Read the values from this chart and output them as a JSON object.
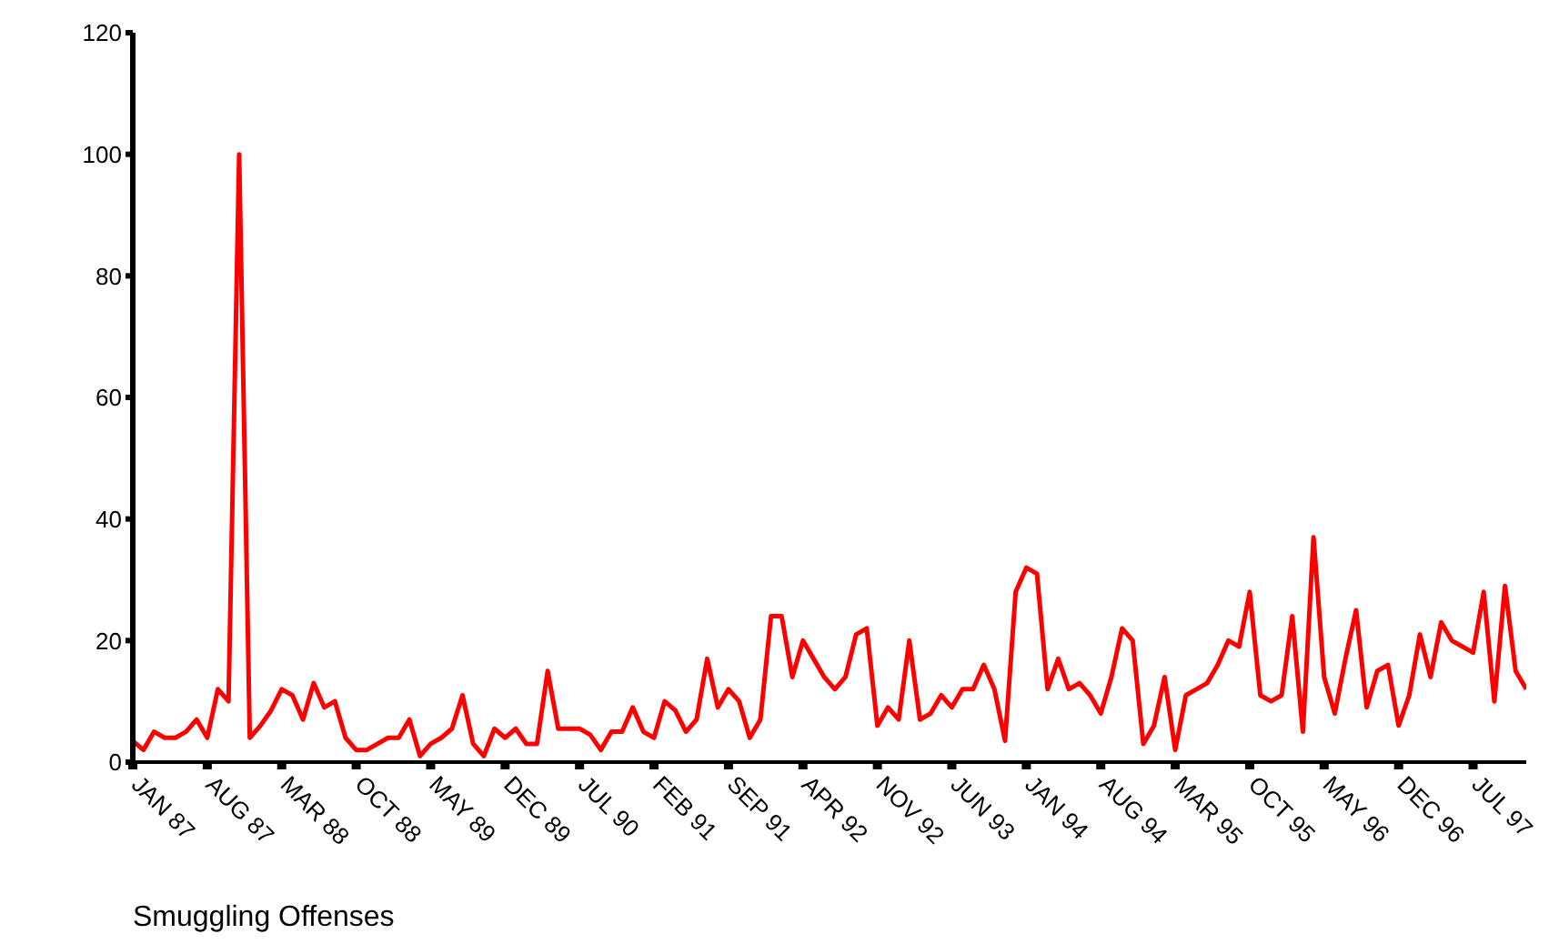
{
  "chart_data": {
    "type": "line",
    "title": "Smuggling Offenses",
    "categories": [
      "JAN 87",
      null,
      null,
      null,
      null,
      null,
      null,
      "AUG 87",
      null,
      null,
      null,
      null,
      null,
      null,
      "MAR 88",
      null,
      null,
      null,
      null,
      null,
      null,
      "OCT 88",
      null,
      null,
      null,
      null,
      null,
      null,
      "MAY 89",
      null,
      null,
      null,
      null,
      null,
      null,
      "DEC 89",
      null,
      null,
      null,
      null,
      null,
      null,
      "JUL 90",
      null,
      null,
      null,
      null,
      null,
      null,
      "FEB 91",
      null,
      null,
      null,
      null,
      null,
      null,
      "SEP 91",
      null,
      null,
      null,
      null,
      null,
      null,
      "APR 92",
      null,
      null,
      null,
      null,
      null,
      null,
      "NOV 92",
      null,
      null,
      null,
      null,
      null,
      null,
      "JUN 93",
      null,
      null,
      null,
      null,
      null,
      null,
      "JAN 94",
      null,
      null,
      null,
      null,
      null,
      null,
      "AUG 94",
      null,
      null,
      null,
      null,
      null,
      null,
      "MAR 95",
      null,
      null,
      null,
      null,
      null,
      null,
      "OCT 95",
      null,
      null,
      null,
      null,
      null,
      null,
      "MAY 96",
      null,
      null,
      null,
      null,
      null,
      null,
      "DEC 96",
      null,
      null,
      null,
      null,
      null,
      null,
      "JUL 97",
      null,
      null,
      null,
      null,
      null
    ],
    "series": [
      {
        "color": "#ff0000",
        "values": [
          3.5,
          2,
          5,
          4,
          4,
          5,
          7,
          4,
          12,
          10,
          100,
          4,
          6,
          8.5,
          12,
          11,
          7,
          13,
          9,
          10,
          4,
          2,
          2,
          3,
          4,
          4,
          7,
          1,
          3,
          4,
          5.5,
          11,
          3,
          1,
          5.5,
          4,
          5.5,
          3,
          3,
          15,
          5.5,
          5.5,
          5.5,
          4.5,
          2,
          5,
          5,
          9,
          5,
          4,
          10,
          8.5,
          5,
          7,
          17,
          9,
          12,
          10,
          4,
          7,
          24,
          24,
          14,
          20,
          17,
          14,
          12,
          14,
          21,
          22,
          6,
          9,
          7,
          20,
          7,
          8,
          11,
          9,
          12,
          12,
          16,
          12,
          3.5,
          28,
          32,
          31,
          12,
          17,
          12,
          13,
          11,
          8,
          14,
          22,
          20,
          3,
          6,
          14,
          2,
          11,
          12,
          13,
          16,
          20,
          19,
          28,
          11,
          10,
          11,
          24,
          5,
          37,
          14,
          8,
          17,
          25,
          9,
          15,
          16,
          6,
          11,
          21,
          14,
          23,
          20,
          19,
          18,
          28,
          10,
          29,
          15,
          12
        ]
      }
    ],
    "ylim": [
      0,
      120
    ],
    "yticks": [
      0,
      20,
      40,
      60,
      80,
      100,
      120
    ],
    "marker": "none",
    "line_style": "solid"
  }
}
